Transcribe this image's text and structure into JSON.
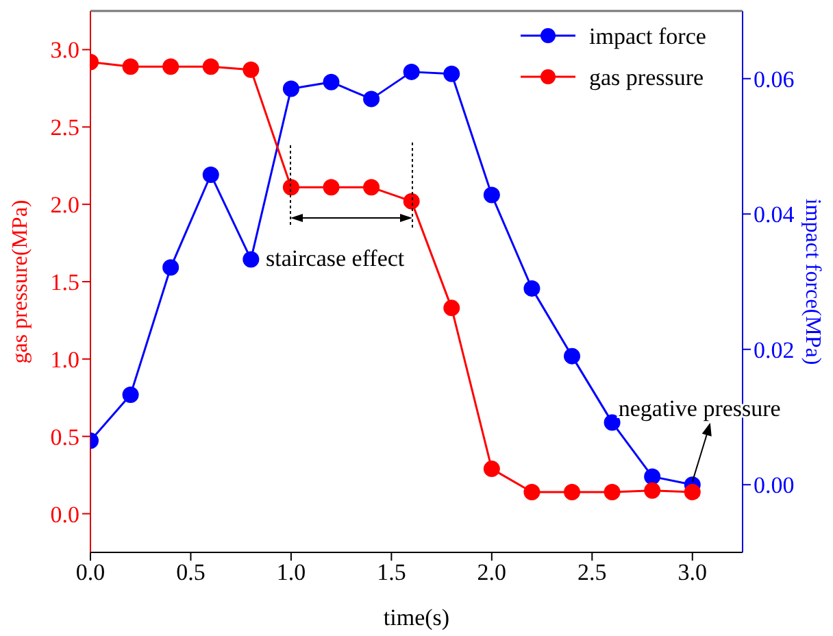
{
  "chart_data": {
    "type": "line",
    "xlabel": "time(s)",
    "ylabel": "gas pressure(MPa)",
    "y2label": "impact force(MPa)",
    "x": [
      0,
      0.2,
      0.4,
      0.6,
      0.8,
      1.0,
      1.2,
      1.4,
      1.6,
      1.8,
      2.0,
      2.2,
      2.4,
      2.6,
      2.8,
      3.0
    ],
    "series": [
      {
        "name": "impact force",
        "color": "#0000ff",
        "axis": "y2",
        "values": [
          0.0065,
          0.0133,
          0.0321,
          0.0458,
          0.0333,
          0.0585,
          0.0595,
          0.057,
          0.061,
          0.0607,
          0.0428,
          0.029,
          0.019,
          0.0092,
          0.0012,
          0.0
        ]
      },
      {
        "name": "gas pressure",
        "color": "#ff0000",
        "axis": "y",
        "values": [
          2.92,
          2.89,
          2.89,
          2.89,
          2.87,
          2.11,
          2.11,
          2.11,
          2.02,
          1.33,
          0.29,
          0.14,
          0.14,
          0.14,
          0.15,
          0.14
        ]
      }
    ],
    "xlim": [
      0,
      3.25
    ],
    "xticks": [
      {
        "value": 0,
        "label": "0.0"
      },
      {
        "value": 0.5,
        "label": "0.5"
      },
      {
        "value": 1,
        "label": "1.0"
      },
      {
        "value": 1.5,
        "label": "1.5"
      },
      {
        "value": 2,
        "label": "2.0"
      },
      {
        "value": 2.5,
        "label": "2.5"
      },
      {
        "value": 3,
        "label": "3.0"
      }
    ],
    "ylim": [
      -0.25,
      3.25
    ],
    "yticks": [
      {
        "value": 0,
        "label": "0.0"
      },
      {
        "value": 0.5,
        "label": "0.5"
      },
      {
        "value": 1,
        "label": "1.0"
      },
      {
        "value": 1.5,
        "label": "1.5"
      },
      {
        "value": 2,
        "label": "2.0"
      },
      {
        "value": 2.5,
        "label": "2.5"
      },
      {
        "value": 3,
        "label": "3.0"
      }
    ],
    "y2lim": [
      -0.01,
      0.07
    ],
    "y2ticks": [
      {
        "value": 0,
        "label": "0.00"
      },
      {
        "value": 0.02,
        "label": "0.02"
      },
      {
        "value": 0.04,
        "label": "0.04"
      },
      {
        "value": 0.06,
        "label": "0.06"
      }
    ],
    "annotations": [
      "staircase effect",
      {
        "text": "negative pressure",
        "x": 3.0,
        "y": 0.19
      }
    ],
    "legend": "top right",
    "marker": "circle",
    "line_style": "solid",
    "grid": false
  }
}
